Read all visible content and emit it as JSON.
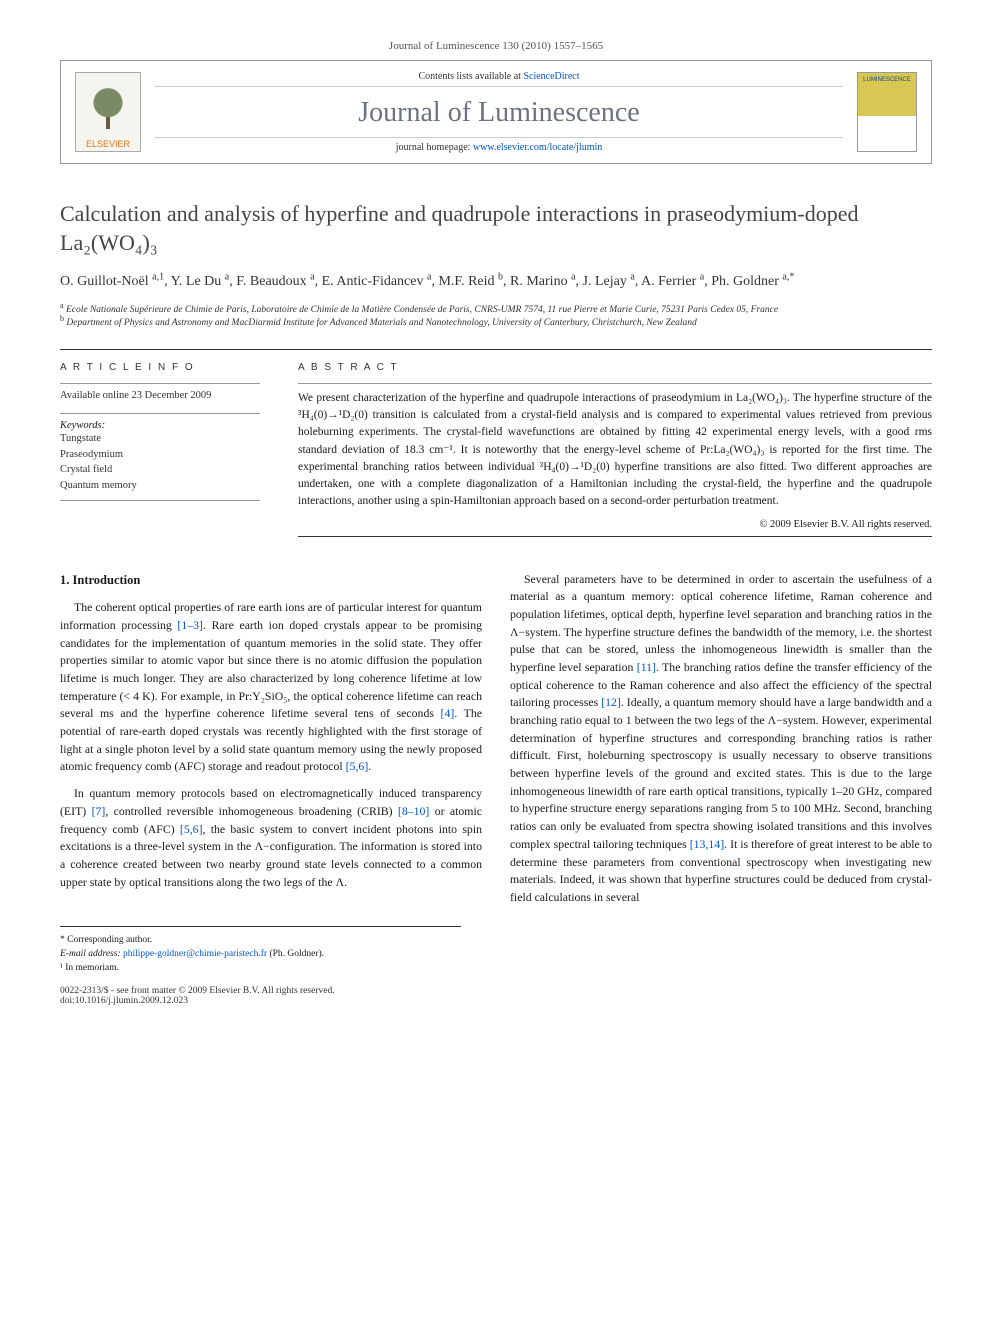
{
  "header": {
    "citation": "Journal of Luminescence 130 (2010) 1557–1565"
  },
  "masthead": {
    "publisher": "ELSEVIER",
    "contents_prefix": "Contents lists available at ",
    "contents_link": "ScienceDirect",
    "journal_name": "Journal of Luminescence",
    "homepage_prefix": "journal homepage: ",
    "homepage_url": "www.elsevier.com/locate/jlumin",
    "cover_text": "LUMINESCENCE"
  },
  "article": {
    "title": "Calculation and analysis of hyperfine and quadrupole interactions in praseodymium-doped La₂(WO₄)₃",
    "authors_html": "O. Guillot-Noël <sup>a,1</sup>, Y. Le Du <sup>a</sup>, F. Beaudoux <sup>a</sup>, E. Antic-Fidancev <sup>a</sup>, M.F. Reid <sup>b</sup>, R. Marino <sup>a</sup>, J. Lejay <sup>a</sup>, A. Ferrier <sup>a</sup>, Ph. Goldner <sup>a,*</sup>",
    "affiliations": [
      "a Ecole Nationale Supérieure de Chimie de Paris, Laboratoire de Chimie de la Matière Condensée de Paris, CNRS-UMR 7574, 11 rue Pierre et Marie Curie, 75231 Paris Cedex 05, France",
      "b Department of Physics and Astronomy and MacDiarmid Institute for Advanced Materials and Nanotechnology, University of Canterbury, Christchurch, New Zealand"
    ]
  },
  "meta": {
    "info_label": "A R T I C L E  I N F O",
    "available": "Available online 23 December 2009",
    "kw_label": "Keywords:",
    "keywords": [
      "Tungstate",
      "Praseodymium",
      "Crystal field",
      "Quantum memory"
    ]
  },
  "abstract": {
    "label": "A B S T R A C T",
    "text": "We present characterization of the hyperfine and quadrupole interactions of praseodymium in La₂(WO₄)₃. The hyperfine structure of the ³H₄(0)→¹D₂(0) transition is calculated from a crystal-field analysis and is compared to experimental values retrieved from previous holeburning experiments. The crystal-field wavefunctions are obtained by fitting 42 experimental energy levels, with a good rms standard deviation of 18.3 cm⁻¹. It is noteworthy that the energy-level scheme of Pr:La₂(WO₄)₃ is reported for the first time. The experimental branching ratios between individual ³H₄(0)→¹D₂(0) hyperfine transitions are also fitted. Two different approaches are undertaken, one with a complete diagonalization of a Hamiltonian including the crystal-field, the hyperfine and the quadrupole interactions, another using a spin-Hamiltonian approach based on a second-order perturbation treatment.",
    "copyright": "© 2009 Elsevier B.V. All rights reserved."
  },
  "body": {
    "section_heading": "1. Introduction",
    "paragraphs": [
      "The coherent optical properties of rare earth ions are of particular interest for quantum information processing [1–3]. Rare earth ion doped crystals appear to be promising candidates for the implementation of quantum memories in the solid state. They offer properties similar to atomic vapor but since there is no atomic diffusion the population lifetime is much longer. They are also characterized by long coherence lifetime at low temperature (< 4 K). For example, in Pr:Y₂SiO₅, the optical coherence lifetime can reach several ms and the hyperfine coherence lifetime several tens of seconds [4]. The potential of rare-earth doped crystals was recently highlighted with the first storage of light at a single photon level by a solid state quantum memory using the newly proposed atomic frequency comb (AFC) storage and readout protocol [5,6].",
      "In quantum memory protocols based on electromagnetically induced transparency (EIT) [7], controlled reversible inhomogeneous broadening (CRIB) [8–10] or atomic frequency comb (AFC) [5,6], the basic system to convert incident photons into spin excitations is a three-level system in the Λ−configuration. The information is stored into a coherence created between two nearby ground state levels connected to a common upper state by optical transitions along the two legs of the Λ.",
      "Several parameters have to be determined in order to ascertain the usefulness of a material as a quantum memory: optical coherence lifetime, Raman coherence and population lifetimes, optical depth, hyperfine level separation and branching ratios in the Λ−system. The hyperfine structure defines the bandwidth of the memory, i.e. the shortest pulse that can be stored, unless the inhomogeneous linewidth is smaller than the hyperfine level separation [11]. The branching ratios define the transfer efficiency of the optical coherence to the Raman coherence and also affect the efficiency of the spectral tailoring processes [12]. Ideally, a quantum memory should have a large bandwidth and a branching ratio equal to 1 between the two legs of the Λ−system. However, experimental determination of hyperfine structures and corresponding branching ratios is rather difficult. First, holeburning spectroscopy is usually necessary to observe transitions between hyperfine levels of the ground and excited states. This is due to the large inhomogeneous linewidth of rare earth optical transitions, typically 1–20 GHz, compared to hyperfine structure energy separations ranging from 5 to 100 MHz. Second, branching ratios can only be evaluated from spectra showing isolated transitions and this involves complex spectral tailoring techniques [13,14]. It is therefore of great interest to be able to determine these parameters from conventional spectroscopy when investigating new materials. Indeed, it was shown that hyperfine structures could be deduced from crystal-field calculations in several"
    ]
  },
  "footnotes": {
    "corresponding": "* Corresponding author.",
    "email_label": "E-mail address:",
    "email": "philippe-goldner@chimie-paristech.fr",
    "email_suffix": "(Ph. Goldner).",
    "memoriam": "¹ In memoriam."
  },
  "footer": {
    "issn": "0022-2313/$ - see front matter © 2009 Elsevier B.V. All rights reserved.",
    "doi": "doi:10.1016/j.jlumin.2009.12.023"
  },
  "colors": {
    "link": "#0055cc",
    "title_gray": "#444444",
    "journal_gray": "#6b7280",
    "elsevier_orange": "#e67817"
  }
}
